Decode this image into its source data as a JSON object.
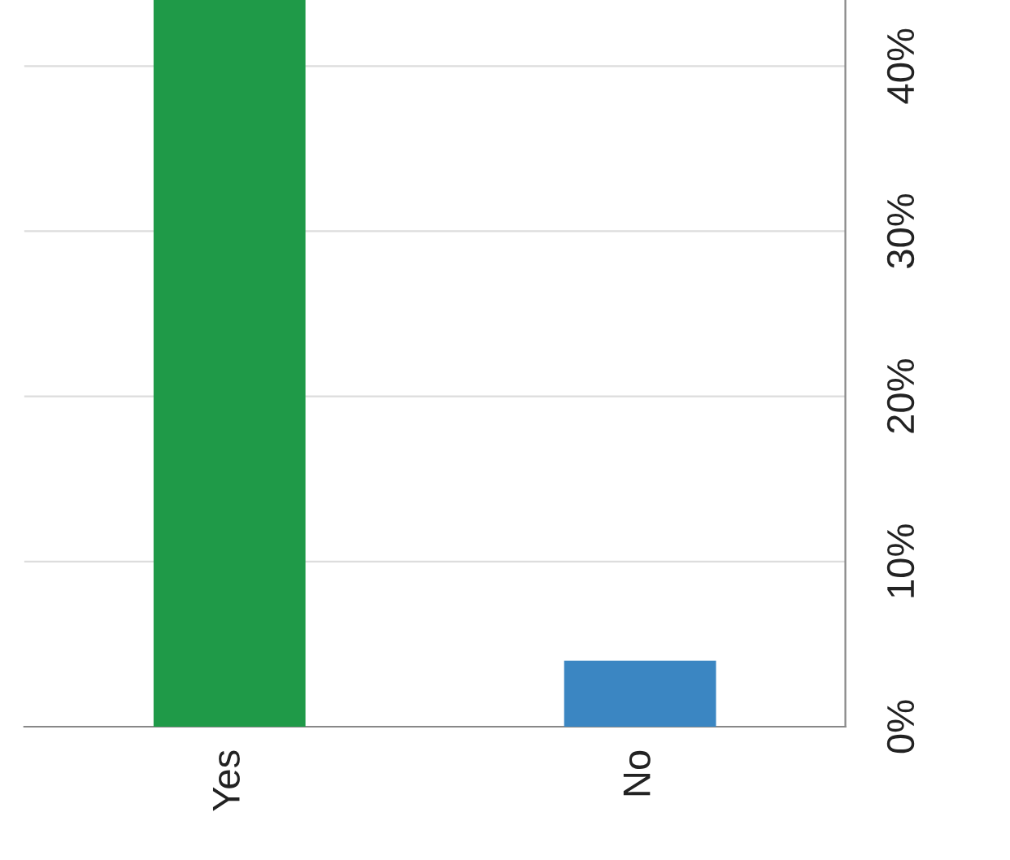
{
  "chart_data": {
    "type": "bar",
    "categories": [
      "Yes",
      "No"
    ],
    "values": [
      44,
      4
    ],
    "colors": [
      "#1f9a48",
      "#3b86c2"
    ],
    "ylim": [
      0,
      44
    ],
    "yticks": [
      {
        "value": 0,
        "label": "0%"
      },
      {
        "value": 10,
        "label": "10%"
      },
      {
        "value": 20,
        "label": "20%"
      },
      {
        "value": 30,
        "label": "30%"
      },
      {
        "value": 40,
        "label": "40%"
      }
    ],
    "grid": "y"
  }
}
